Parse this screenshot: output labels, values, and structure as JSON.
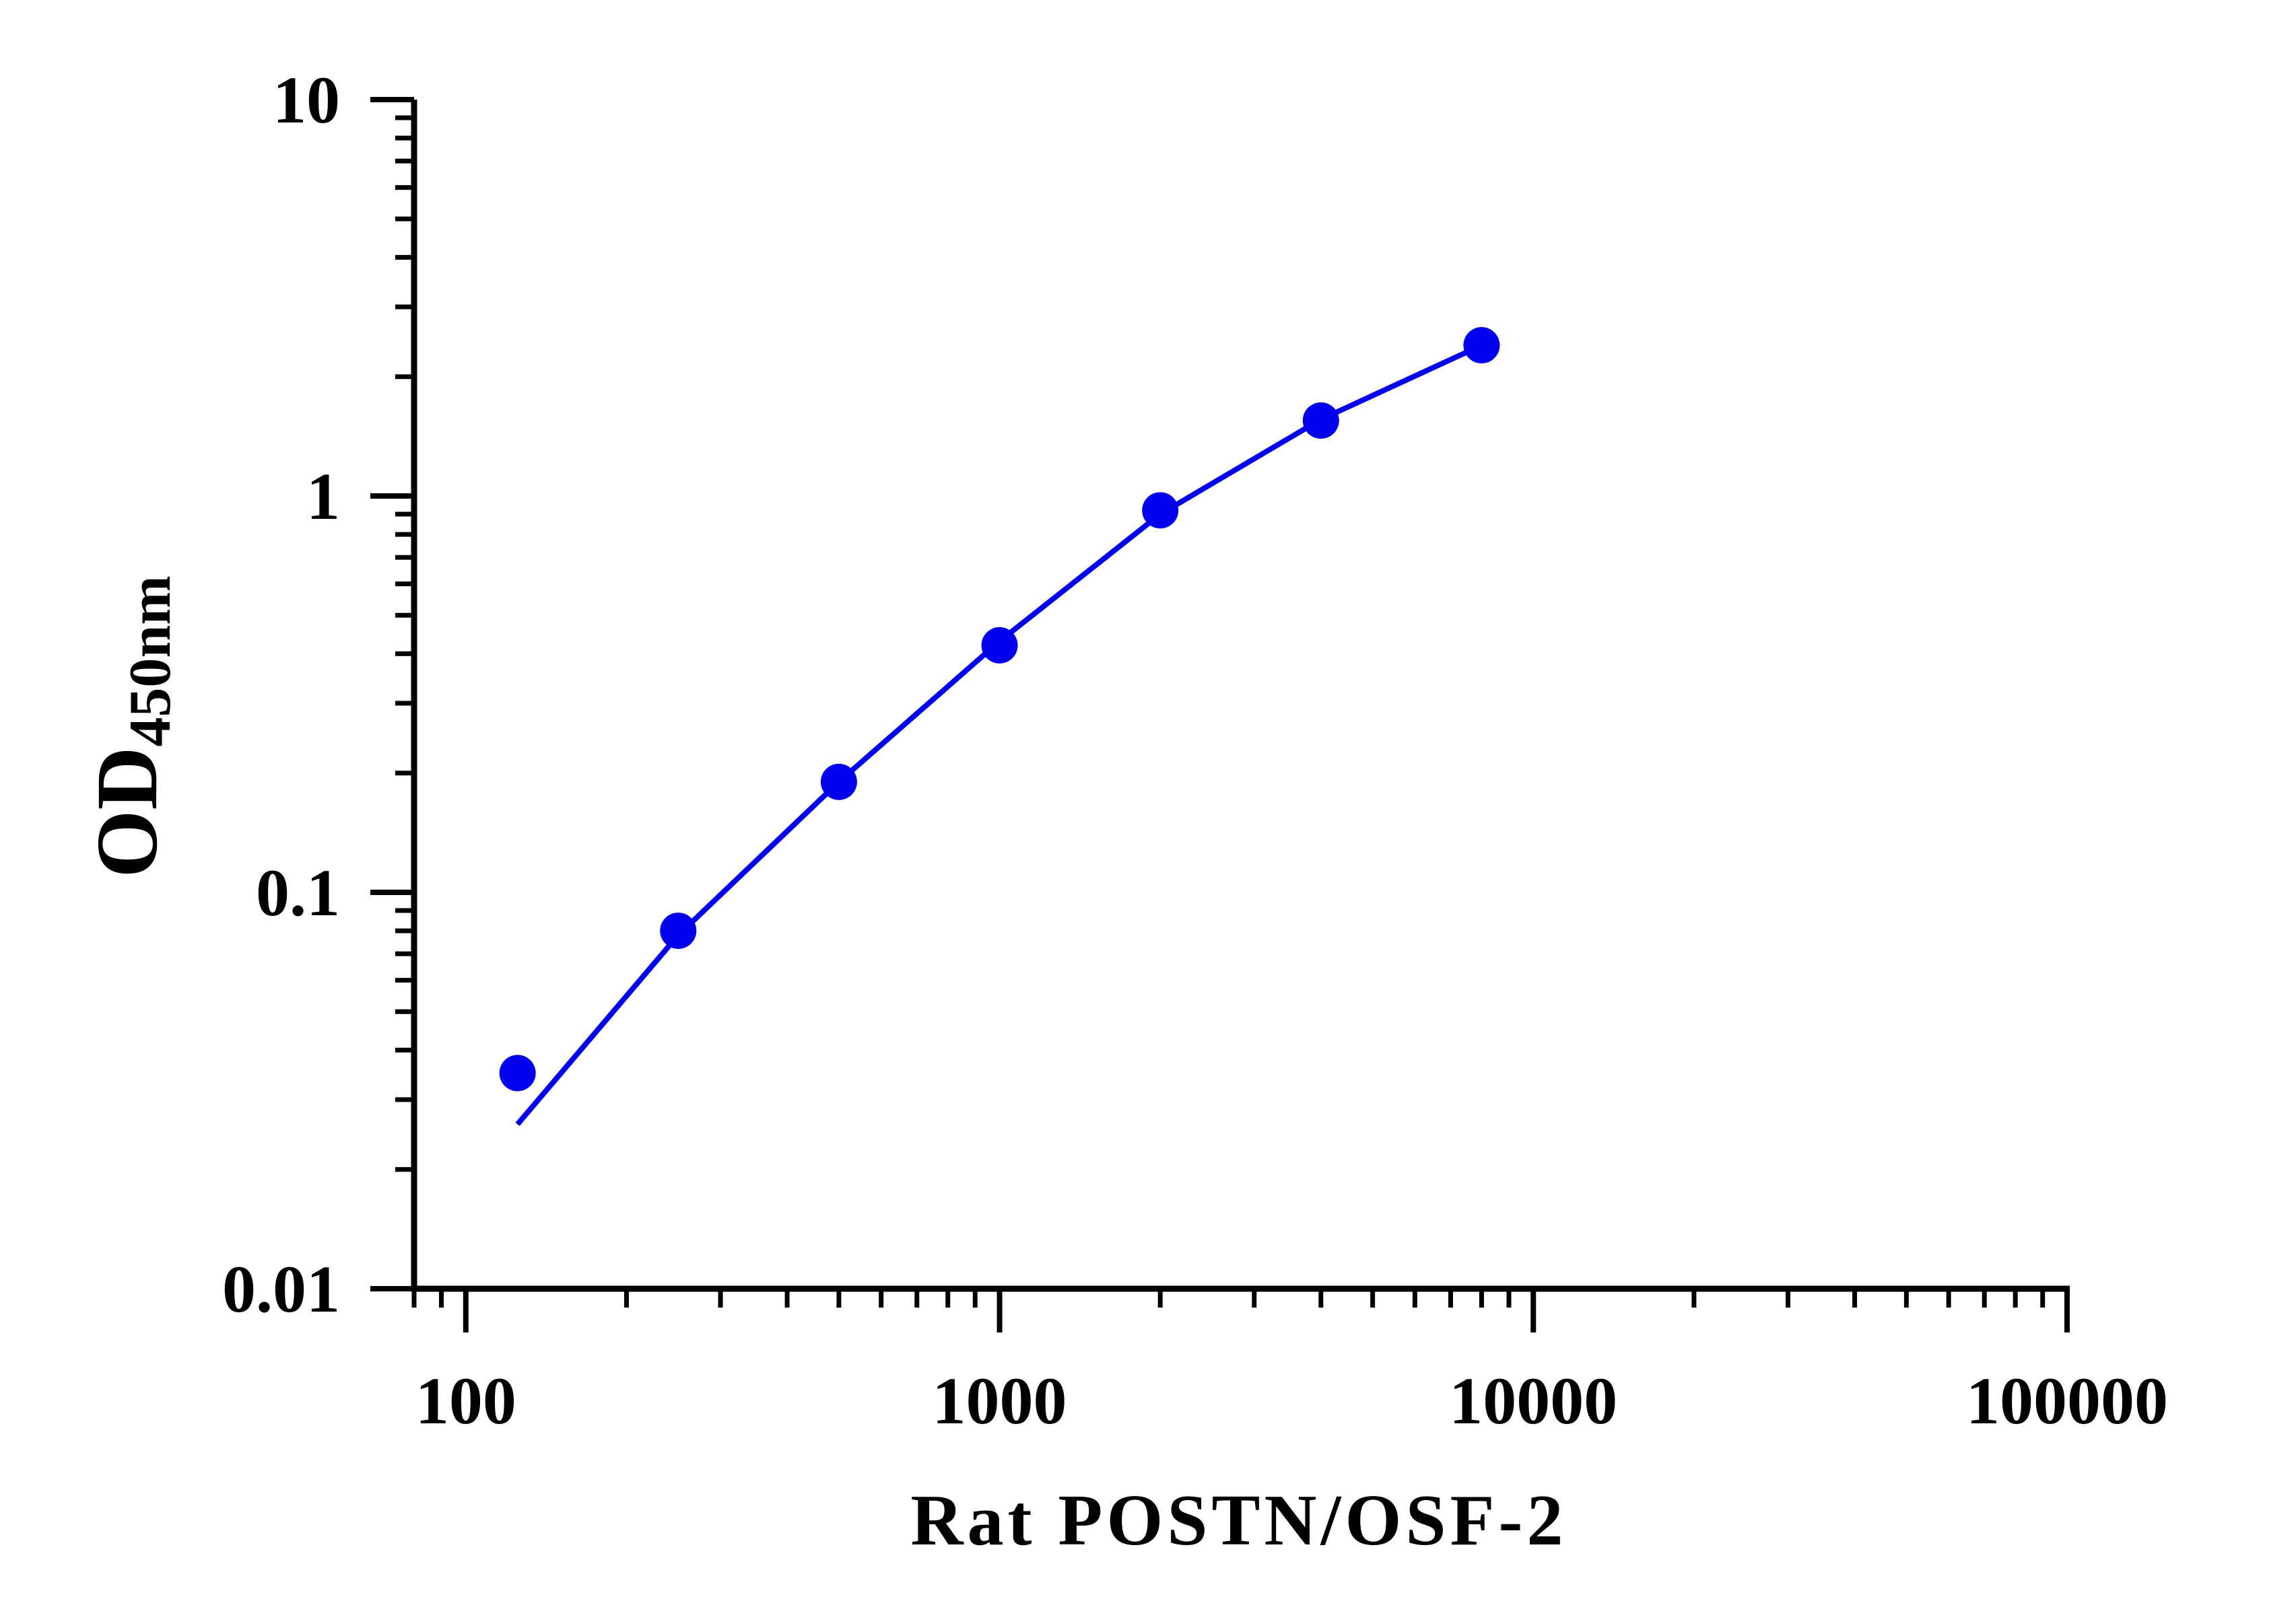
{
  "chart_data": {
    "type": "scatter",
    "xscale": "log",
    "yscale": "log",
    "xlim": [
      80,
      100000
    ],
    "ylim": [
      0.01,
      10
    ],
    "xlabel": "Rat POSTN/OSF-2",
    "ylabel": "OD",
    "ylabel_subscript": "450nm",
    "x_tick_labels": [
      "100",
      "1000",
      "10000",
      "100000"
    ],
    "y_tick_labels": [
      "0.01",
      "0.1",
      "1",
      "10"
    ],
    "grid": false,
    "legend": "none",
    "series": [
      {
        "points": [
          {
            "x": 125,
            "y": 0.035
          },
          {
            "x": 250,
            "y": 0.08
          },
          {
            "x": 500,
            "y": 0.19
          },
          {
            "x": 1000,
            "y": 0.42
          },
          {
            "x": 2000,
            "y": 0.92
          },
          {
            "x": 4000,
            "y": 1.55
          },
          {
            "x": 8000,
            "y": 2.4
          }
        ],
        "fit_curve": [
          {
            "x": 125,
            "y": 0.026
          },
          {
            "x": 250,
            "y": 0.078
          },
          {
            "x": 500,
            "y": 0.19
          },
          {
            "x": 1000,
            "y": 0.43
          },
          {
            "x": 2000,
            "y": 0.9
          },
          {
            "x": 4000,
            "y": 1.56
          },
          {
            "x": 8000,
            "y": 2.4
          }
        ]
      }
    ],
    "colors": {
      "series": "#0000ee",
      "axis": "#000000"
    }
  }
}
